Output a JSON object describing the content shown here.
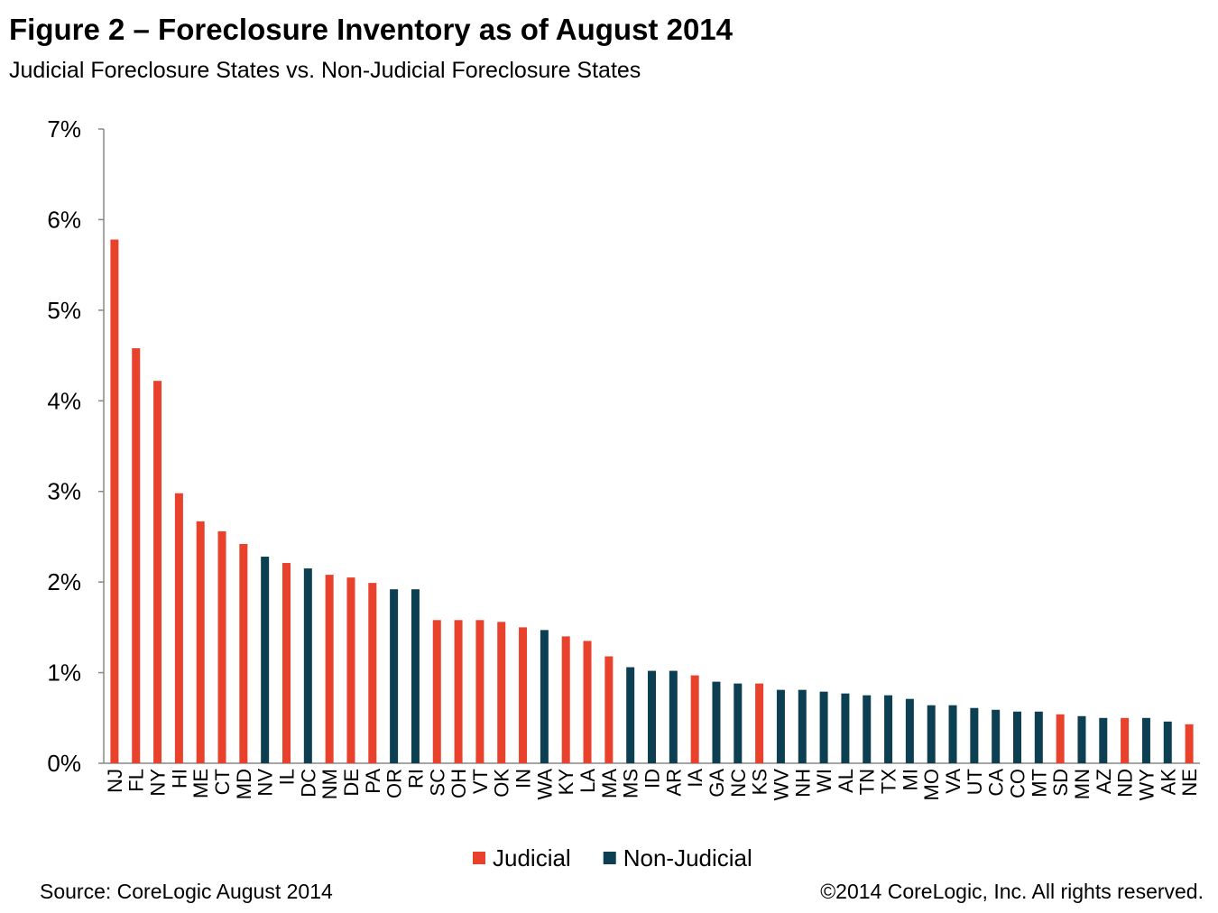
{
  "chart_data": {
    "type": "bar",
    "title": "Figure 2 – Foreclosure Inventory as of August 2014",
    "subtitle": "Judicial Foreclosure States vs. Non-Judicial Foreclosure States",
    "source": "Source: CoreLogic  August 2014",
    "note": "©2014 CoreLogic, Inc. All rights reserved.",
    "categories": [
      "NJ",
      "FL",
      "NY",
      "HI",
      "ME",
      "CT",
      "MD",
      "NV",
      "IL",
      "DC",
      "NM",
      "DE",
      "PA",
      "OR",
      "RI",
      "SC",
      "OH",
      "VT",
      "OK",
      "IN",
      "WA",
      "KY",
      "LA",
      "MA",
      "MS",
      "ID",
      "AR",
      "IA",
      "GA",
      "NC",
      "KS",
      "WV",
      "NH",
      "WI",
      "AL",
      "TN",
      "TX",
      "MI",
      "MO",
      "VA",
      "UT",
      "CA",
      "CO",
      "MT",
      "SD",
      "MN",
      "AZ",
      "ND",
      "WY",
      "AK",
      "NE"
    ],
    "series": [
      {
        "name": "Judicial",
        "color": "#e8412c",
        "values": [
          5.78,
          4.58,
          4.22,
          2.98,
          2.67,
          2.56,
          2.42,
          null,
          2.21,
          null,
          2.08,
          2.05,
          1.99,
          null,
          null,
          1.58,
          1.58,
          1.58,
          1.56,
          1.5,
          null,
          1.4,
          1.35,
          1.18,
          null,
          null,
          null,
          0.97,
          null,
          null,
          0.88,
          null,
          null,
          null,
          null,
          null,
          null,
          null,
          null,
          null,
          null,
          null,
          null,
          null,
          0.54,
          null,
          null,
          0.5,
          null,
          null,
          0.43
        ]
      },
      {
        "name": "Non-Judicial",
        "color": "#0d3f52",
        "values": [
          null,
          null,
          null,
          null,
          null,
          null,
          null,
          2.28,
          null,
          2.15,
          null,
          null,
          null,
          1.92,
          1.92,
          null,
          null,
          null,
          null,
          null,
          1.47,
          null,
          null,
          null,
          1.06,
          1.02,
          1.02,
          null,
          0.9,
          0.88,
          null,
          0.81,
          0.81,
          0.79,
          0.77,
          0.75,
          0.75,
          0.71,
          0.64,
          0.64,
          0.61,
          0.59,
          0.57,
          0.57,
          null,
          0.52,
          0.5,
          null,
          0.5,
          0.46,
          null
        ]
      }
    ],
    "ylim": [
      0,
      7
    ],
    "yticks": [
      {
        "value": 0,
        "label": "0%"
      },
      {
        "value": 1,
        "label": "1%"
      },
      {
        "value": 2,
        "label": "2%"
      },
      {
        "value": 3,
        "label": "3%"
      },
      {
        "value": 4,
        "label": "4%"
      },
      {
        "value": 5,
        "label": "5%"
      },
      {
        "value": 6,
        "label": "6%"
      },
      {
        "value": 7,
        "label": "7%"
      }
    ],
    "legend": "bottom"
  }
}
